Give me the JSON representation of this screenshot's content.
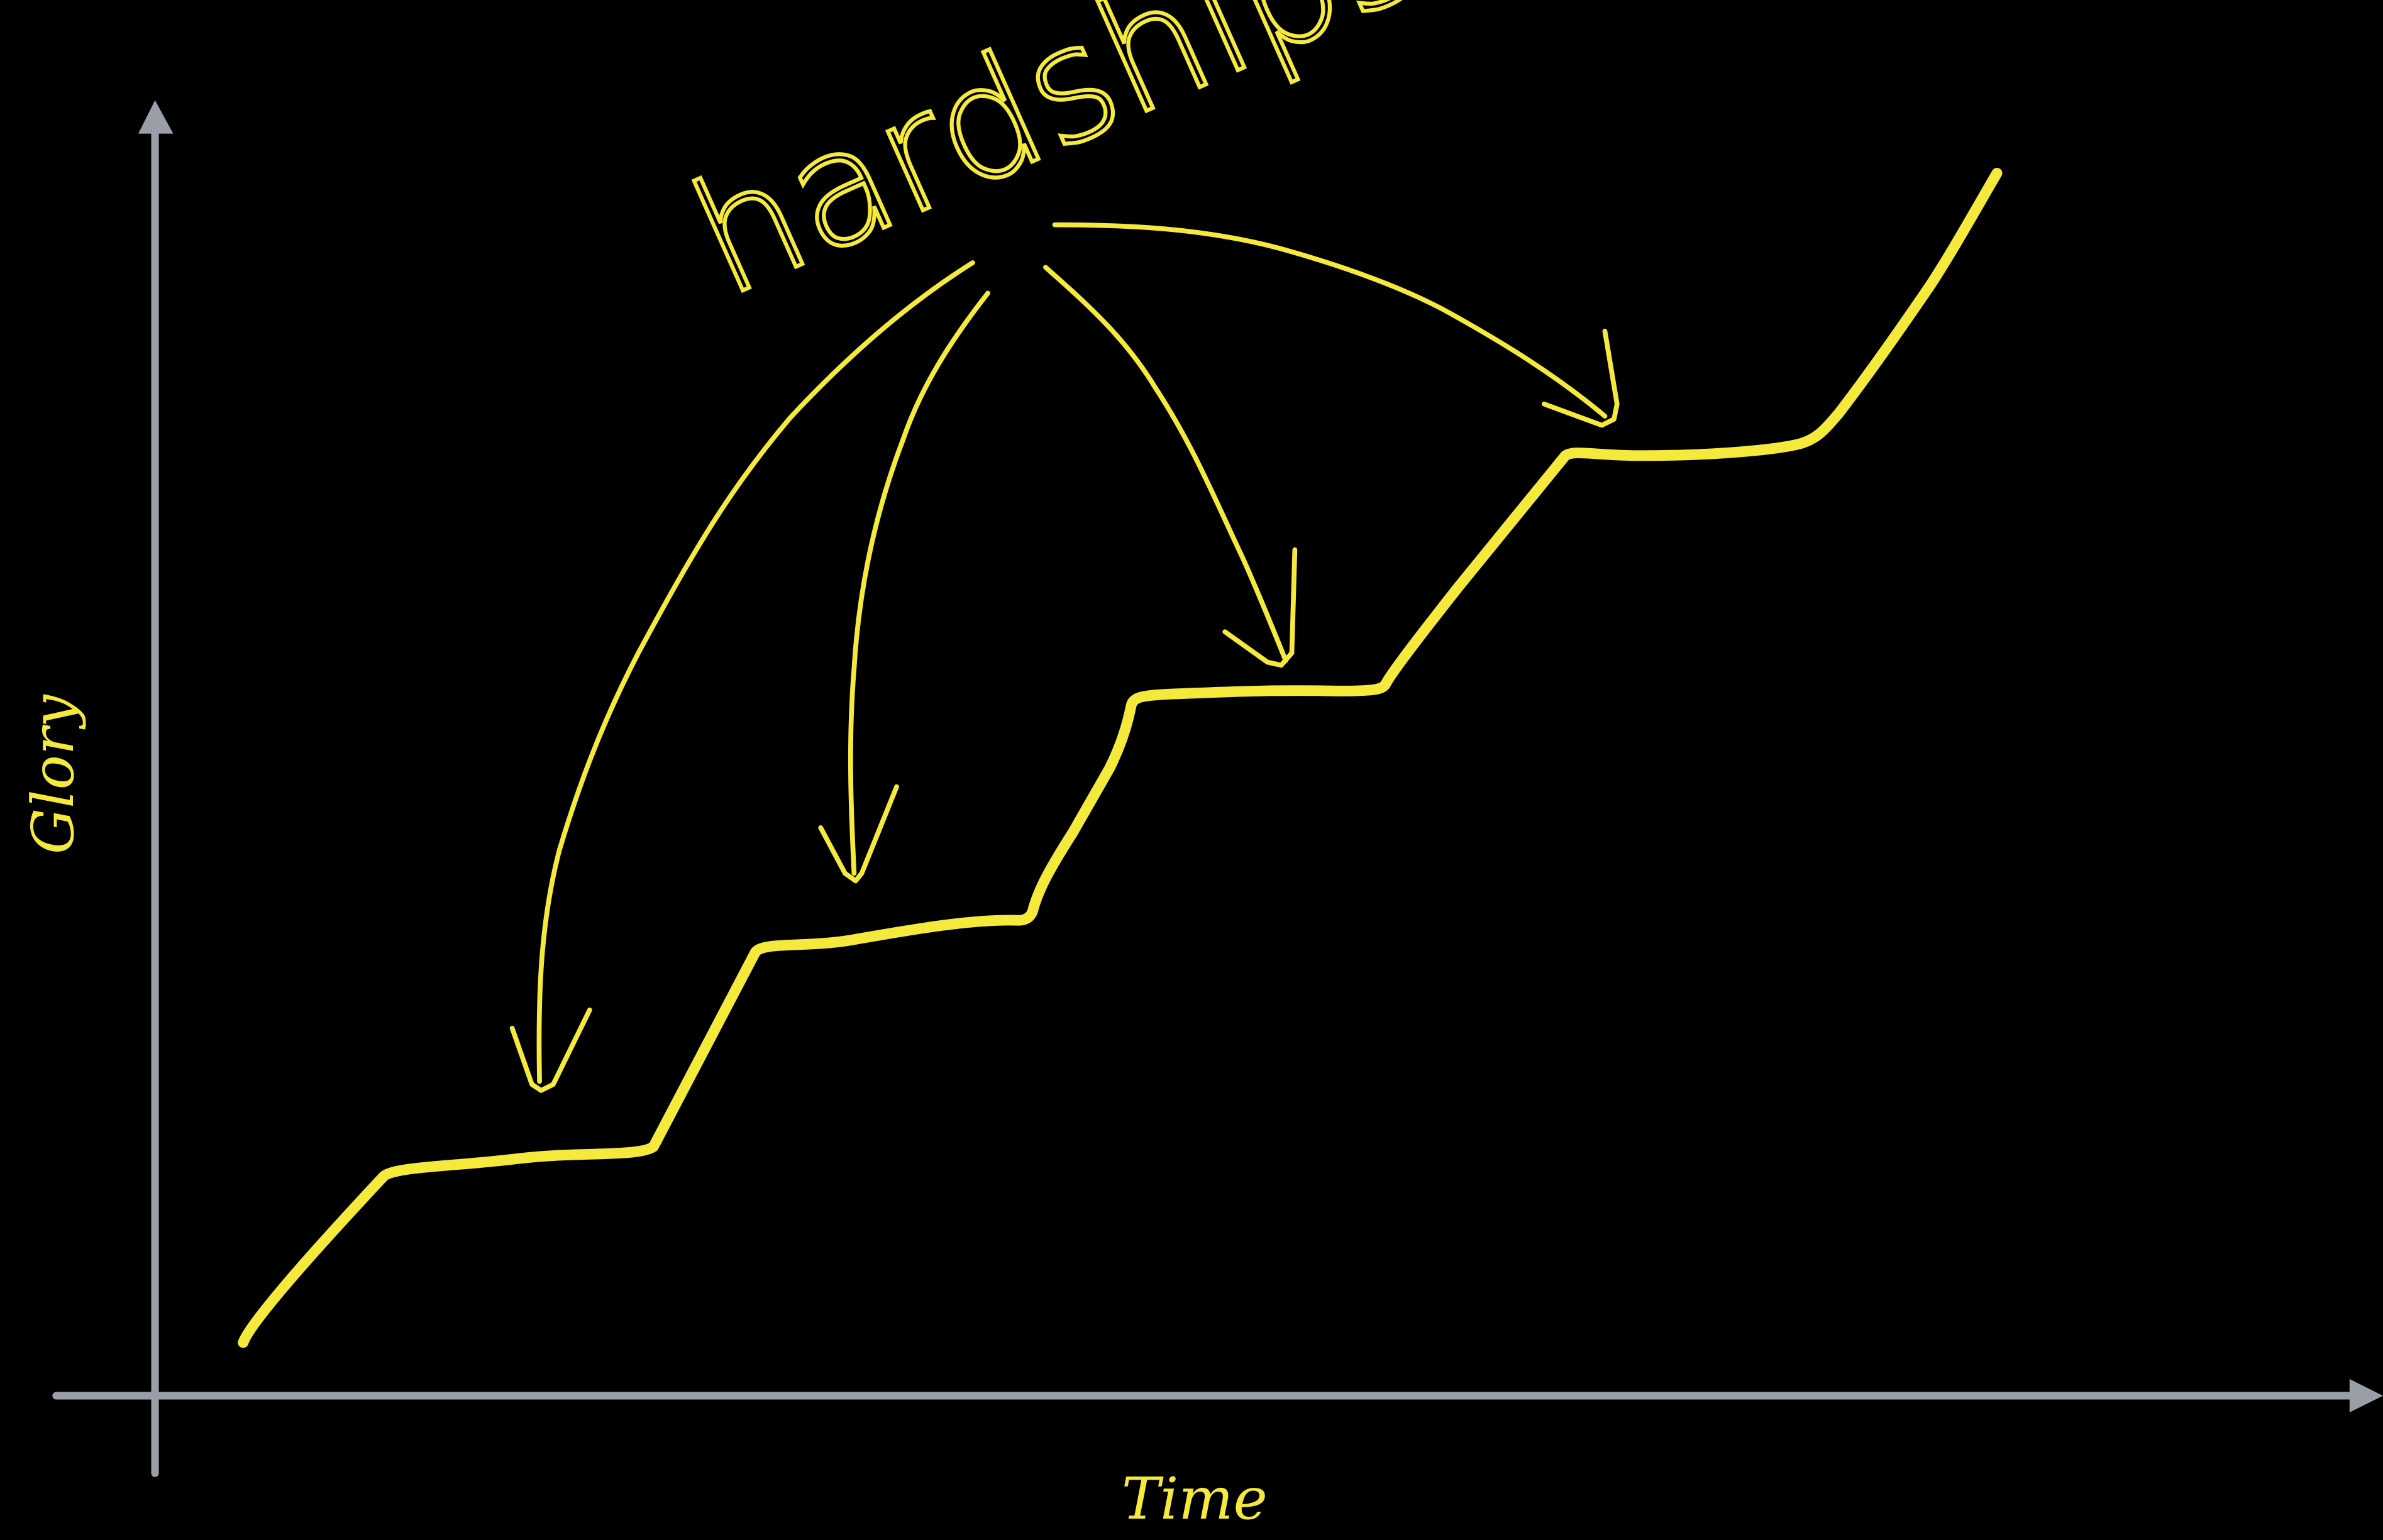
{
  "labels": {
    "y_axis": "Glory",
    "x_axis": "Time",
    "annotation": "hardships"
  },
  "colors": {
    "background": "#000000",
    "axis": "#9a9ea6",
    "ink": "#f5ea3c"
  }
}
